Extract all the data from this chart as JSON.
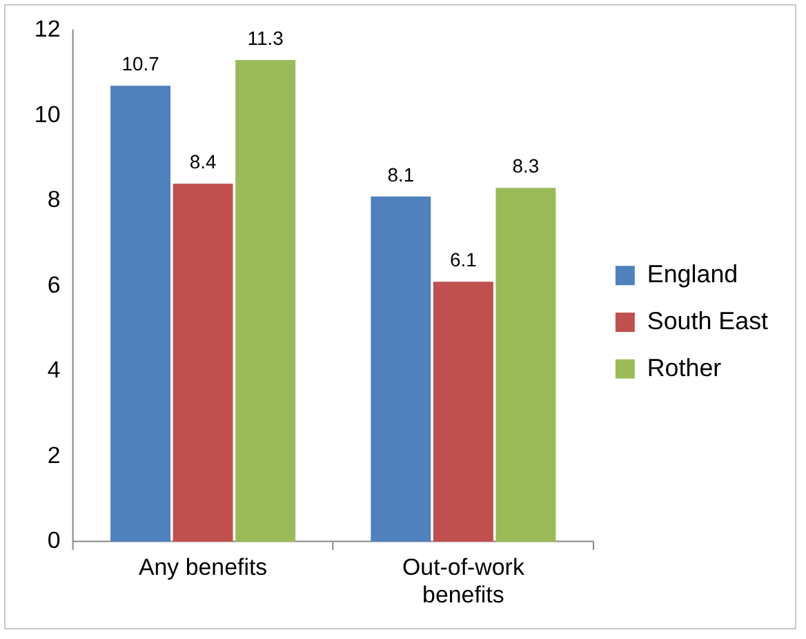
{
  "chart_data": {
    "type": "bar",
    "categories": [
      "Any benefits",
      "Out-of-work benefits"
    ],
    "series": [
      {
        "name": "England",
        "color": "#4f81bd",
        "values": [
          10.7,
          8.1
        ]
      },
      {
        "name": "South East",
        "color": "#c0504d",
        "values": [
          8.4,
          6.1
        ]
      },
      {
        "name": "Rother",
        "color": "#9bbb59",
        "values": [
          11.3,
          8.3
        ]
      }
    ],
    "ylim": [
      0,
      12
    ],
    "yticks": [
      0,
      2,
      4,
      6,
      8,
      10,
      12
    ],
    "grid": false,
    "legend": "right",
    "data_labels": true
  }
}
